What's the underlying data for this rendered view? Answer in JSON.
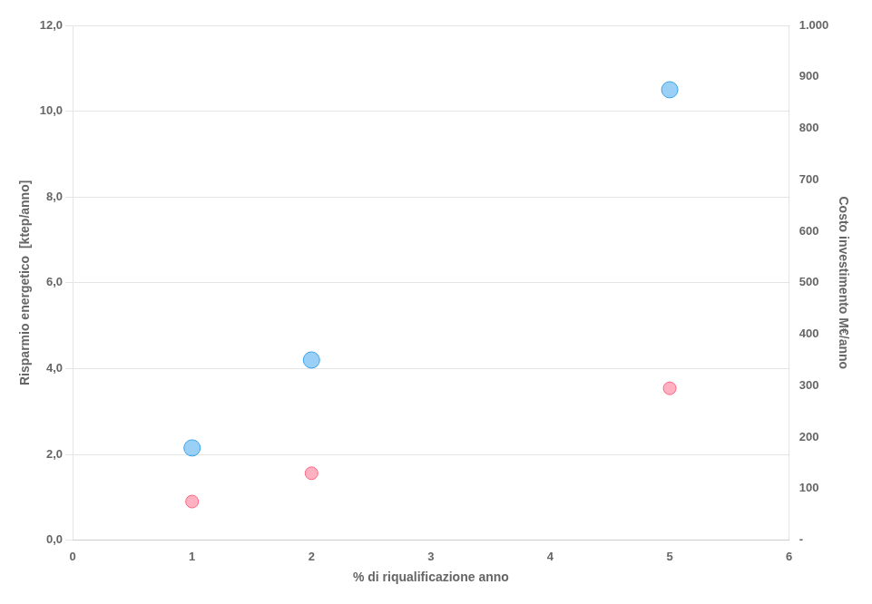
{
  "chart_data": {
    "type": "scatter",
    "xlabel": "% di riqualificazione anno",
    "ylabel": "Risparmio energetico  [ktep/anno]",
    "y2label": "Costo investimento M€/anno",
    "x": [
      1,
      2,
      5
    ],
    "series": [
      {
        "values": [
          2.15,
          4.2,
          10.5
        ]
      },
      {
        "values": [
          75,
          130,
          295
        ],
        "axis": "y2"
      }
    ],
    "xlim": [
      0,
      6
    ],
    "xticks": [
      0,
      1,
      2,
      3,
      4,
      5,
      6
    ],
    "ylim": [
      0,
      12
    ],
    "yticks": [
      {
        "value": 0,
        "label": "0,0"
      },
      {
        "value": 2,
        "label": "2,0"
      },
      {
        "value": 4,
        "label": "4,0"
      },
      {
        "value": 6,
        "label": "6,0"
      },
      {
        "value": 8,
        "label": "8,0"
      },
      {
        "value": 10,
        "label": "10,0"
      },
      {
        "value": 12,
        "label": "12,0"
      }
    ],
    "y2lim": [
      0,
      1000
    ],
    "y2ticks": [
      {
        "value": 0,
        "label": "-"
      },
      100,
      200,
      300,
      400,
      500,
      600,
      700,
      800,
      900,
      {
        "value": 1000,
        "label": "1.000"
      }
    ],
    "grid": "y"
  }
}
